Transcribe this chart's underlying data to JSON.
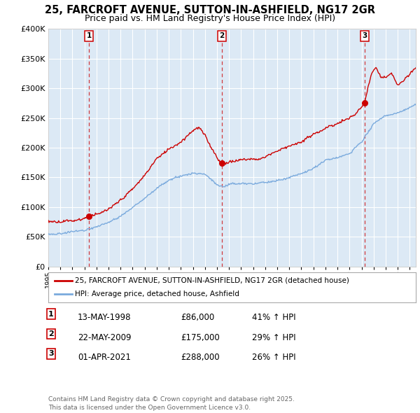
{
  "title": "25, FARCROFT AVENUE, SUTTON-IN-ASHFIELD, NG17 2GR",
  "subtitle": "Price paid vs. HM Land Registry's House Price Index (HPI)",
  "legend_red": "25, FARCROFT AVENUE, SUTTON-IN-ASHFIELD, NG17 2GR (detached house)",
  "legend_blue": "HPI: Average price, detached house, Ashfield",
  "footer": "Contains HM Land Registry data © Crown copyright and database right 2025.\nThis data is licensed under the Open Government Licence v3.0.",
  "transactions": [
    {
      "num": 1,
      "date": "13-MAY-1998",
      "price": 86000,
      "hpi_pct": "41% ↑ HPI",
      "year_x": 1998.37
    },
    {
      "num": 2,
      "date": "22-MAY-2009",
      "price": 175000,
      "hpi_pct": "29% ↑ HPI",
      "year_x": 2009.39
    },
    {
      "num": 3,
      "date": "01-APR-2021",
      "price": 288000,
      "hpi_pct": "26% ↑ HPI",
      "year_x": 2021.25
    }
  ],
  "ylim": [
    0,
    400000
  ],
  "yticks": [
    0,
    50000,
    100000,
    150000,
    200000,
    250000,
    300000,
    350000,
    400000
  ],
  "xlim_start": 1995.0,
  "xlim_end": 2025.5,
  "background_color": "#dce9f5",
  "red_color": "#cc0000",
  "blue_color": "#7aaadd",
  "grid_color": "#ffffff",
  "title_fontsize": 10.5,
  "subtitle_fontsize": 9,
  "hpi_anchors_x": [
    1995.0,
    1996,
    1997,
    1998,
    1999,
    2000,
    2001,
    2002,
    2003,
    2004,
    2005,
    2006,
    2007,
    2008,
    2009.0,
    2009.5,
    2010,
    2011,
    2012,
    2013,
    2014,
    2015,
    2016,
    2017,
    2018,
    2019,
    2020,
    2021,
    2022,
    2023,
    2024,
    2025.5
  ],
  "hpi_anchors_y": [
    54000,
    56000,
    60000,
    65000,
    70000,
    76000,
    88000,
    102000,
    118000,
    135000,
    148000,
    156000,
    162000,
    158000,
    140000,
    135000,
    138000,
    138000,
    136000,
    138000,
    142000,
    148000,
    155000,
    165000,
    178000,
    185000,
    190000,
    210000,
    240000,
    252000,
    258000,
    272000
  ],
  "red_anchors_x": [
    1995.0,
    1996,
    1997,
    1998.0,
    1998.37,
    1999,
    2000,
    2001,
    2002,
    2003,
    2004,
    2005,
    2006,
    2007.0,
    2007.5,
    2008,
    2008.5,
    2009.0,
    2009.39,
    2010,
    2011,
    2012,
    2013,
    2014,
    2015,
    2016,
    2017,
    2018,
    2019,
    2020,
    2020.5,
    2021.0,
    2021.25,
    2021.8,
    2022.2,
    2022.6,
    2023.0,
    2023.5,
    2024.0,
    2024.5,
    2025.5
  ],
  "red_anchors_y": [
    76000,
    76000,
    79000,
    83000,
    86000,
    90000,
    98000,
    112000,
    130000,
    152000,
    185000,
    200000,
    212000,
    232000,
    238000,
    225000,
    205000,
    188000,
    175000,
    179000,
    183000,
    183000,
    188000,
    198000,
    207000,
    215000,
    228000,
    240000,
    250000,
    258000,
    265000,
    280000,
    288000,
    335000,
    345000,
    330000,
    330000,
    338000,
    318000,
    325000,
    348000
  ]
}
